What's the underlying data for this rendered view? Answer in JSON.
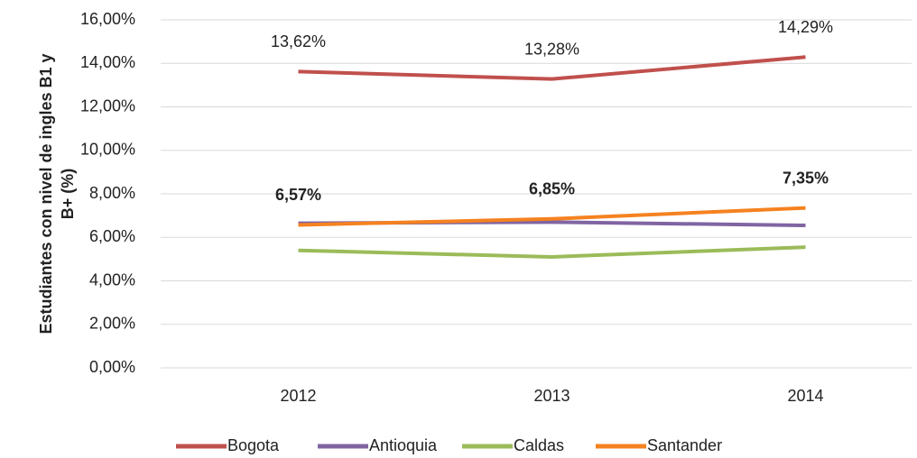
{
  "chart_data": {
    "type": "line",
    "ylabel": [
      "Estudiantes con nivel de ingles B1 y",
      "B+ (%)"
    ],
    "categories": [
      "2012",
      "2013",
      "2014"
    ],
    "ylim": [
      0,
      16
    ],
    "yticks": [
      {
        "value": 0,
        "label": "0,00%"
      },
      {
        "value": 2,
        "label": "2,00%"
      },
      {
        "value": 4,
        "label": "4,00%"
      },
      {
        "value": 6,
        "label": "6,00%"
      },
      {
        "value": 8,
        "label": "8,00%"
      },
      {
        "value": 10,
        "label": "10,00%"
      },
      {
        "value": 12,
        "label": "12,00%"
      },
      {
        "value": 14,
        "label": "14,00%"
      },
      {
        "value": 16,
        "label": "16,00%"
      }
    ],
    "grid": true,
    "legend": "bottom",
    "series": [
      {
        "name": "Bogota",
        "color": "#c0504d",
        "values": [
          13.62,
          13.28,
          14.29
        ],
        "value_labels": [
          "13,62%",
          "13,28%",
          "14,29%"
        ]
      },
      {
        "name": "Antioquia",
        "color": "#8064a2",
        "values": [
          6.65,
          6.7,
          6.55
        ]
      },
      {
        "name": "Caldas",
        "color": "#9bbb59",
        "values": [
          5.4,
          5.1,
          5.55
        ]
      },
      {
        "name": "Santander",
        "color": "#f58220",
        "values": [
          6.57,
          6.85,
          7.35
        ],
        "value_labels": [
          "6,57%",
          "6,85%",
          "7,35%"
        ],
        "label_bold": true
      }
    ]
  }
}
